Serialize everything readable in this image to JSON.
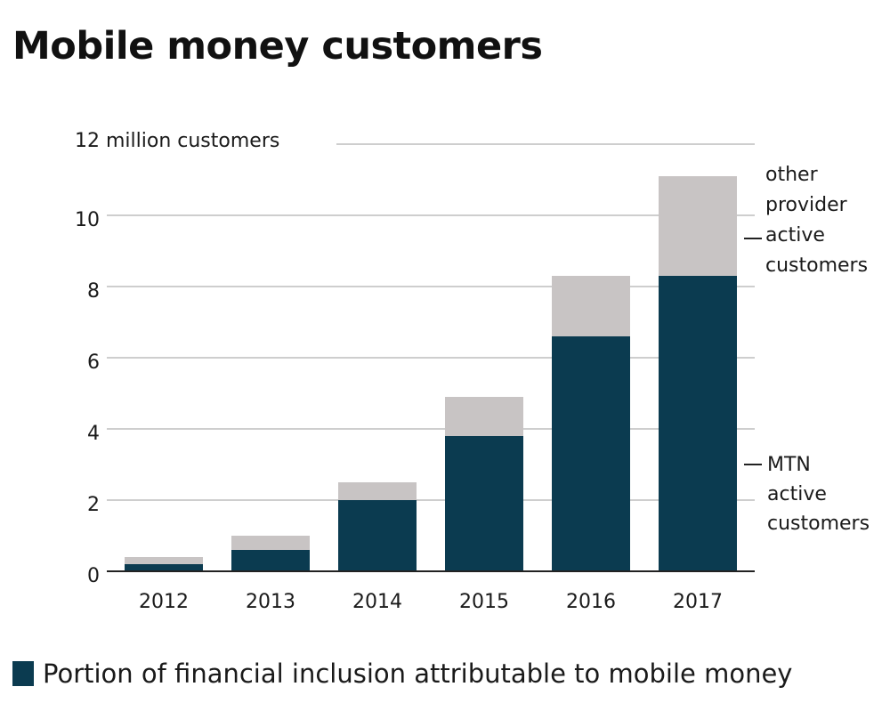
{
  "title": "Mobile money customers",
  "colors": {
    "mtn": "#0b3b50",
    "other": "#c8c4c4",
    "grid": "#bdbdbd",
    "axis": "#222222",
    "text": "#1a1a1a"
  },
  "chart_data": {
    "type": "bar",
    "stacked": true,
    "categories": [
      "2012",
      "2013",
      "2014",
      "2015",
      "2016",
      "2017"
    ],
    "series": [
      {
        "name": "MTN active customers",
        "values": [
          0.2,
          0.6,
          2.0,
          3.8,
          6.6,
          8.3
        ]
      },
      {
        "name": "other provider active customers",
        "values": [
          0.2,
          0.4,
          0.5,
          1.1,
          1.7,
          2.8
        ]
      }
    ],
    "y_ticks": [
      "0",
      "2",
      "4",
      "6",
      "8",
      "10",
      "12 million customers"
    ],
    "ylim": [
      0,
      12
    ],
    "grid": true,
    "legend": "right",
    "series_labels": {
      "other": [
        "other",
        "provider",
        "active",
        "customers"
      ],
      "mtn": [
        "MTN",
        "active",
        "customers"
      ]
    }
  },
  "legend_note": {
    "label": "Portion of financial inclusion attributable to mobile money",
    "color": "#0b3b50"
  }
}
